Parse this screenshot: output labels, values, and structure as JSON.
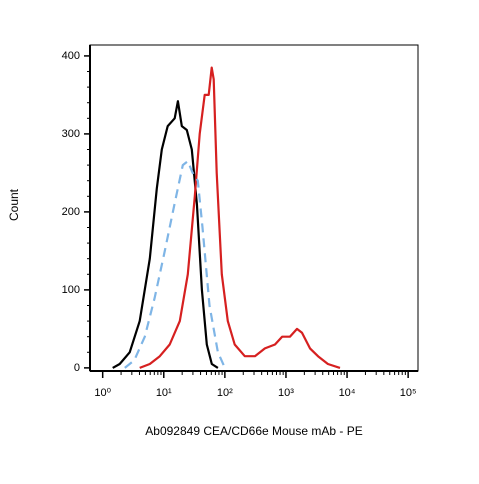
{
  "chart_data": {
    "type": "line",
    "xlabel": "Ab092849 CEA/CD66e Mouse mAb - PE",
    "ylabel": "Count",
    "xscale": "log",
    "xlim": [
      0.62,
      145000
    ],
    "ylim": [
      -4,
      414
    ],
    "xticks": [
      {
        "value": 1,
        "label": "10⁰"
      },
      {
        "value": 10,
        "label": "10¹"
      },
      {
        "value": 100,
        "label": "10²"
      },
      {
        "value": 1000,
        "label": "10³"
      },
      {
        "value": 10000,
        "label": "10⁴"
      },
      {
        "value": 100000,
        "label": "10⁵"
      }
    ],
    "yticks": [
      0,
      100,
      200,
      300,
      400
    ],
    "series": [
      {
        "color": "#000000",
        "linestyle": "solid",
        "x": [
          1.46,
          1.9,
          2.77,
          4.04,
          5.9,
          7.7,
          9.3,
          11.6,
          15.1,
          17,
          19.7,
          23.8,
          28.8,
          34.8,
          42,
          50.7,
          61,
          77
        ],
        "values": [
          0,
          5,
          20,
          60,
          140,
          230,
          280,
          310,
          320,
          342,
          310,
          305,
          280,
          210,
          100,
          30,
          5,
          0
        ]
      },
      {
        "color": "#d62020",
        "linestyle": "solid",
        "x": [
          4.04,
          5.9,
          8.6,
          12.5,
          18.3,
          24.7,
          32.2,
          38.8,
          46.8,
          54.3,
          60.8,
          65.6,
          73.4,
          89,
          111.7,
          145,
          212,
          310,
          453,
          662,
          865,
          1160,
          1515,
          1830,
          2475,
          3340,
          4860,
          7680
        ],
        "values": [
          0,
          5,
          15,
          30,
          60,
          120,
          220,
          300,
          350,
          350,
          385,
          370,
          250,
          120,
          60,
          30,
          15,
          15,
          25,
          30,
          40,
          40,
          50,
          45,
          25,
          15,
          5,
          0
        ]
      },
      {
        "color": "#7fb5e6",
        "linestyle": "dashed",
        "x": [
          2.3,
          3.3,
          4.9,
          7.1,
          10.4,
          15,
          20.5,
          24.7,
          29.7,
          36,
          43,
          56,
          77,
          100
        ],
        "values": [
          0,
          10,
          40,
          90,
          150,
          210,
          260,
          265,
          250,
          240,
          180,
          80,
          20,
          0
        ]
      }
    ]
  }
}
